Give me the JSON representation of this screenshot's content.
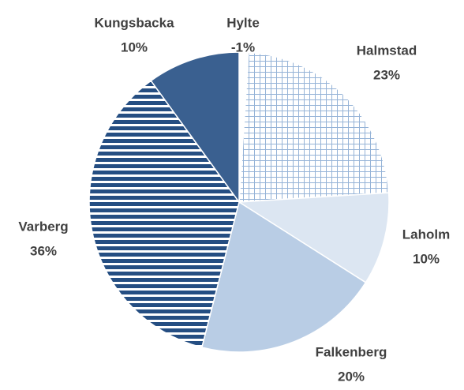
{
  "chart_data": {
    "type": "pie",
    "categories": [
      "Hylte",
      "Halmstad",
      "Laholm",
      "Falkenberg",
      "Varberg",
      "Kungsbacka"
    ],
    "values": [
      -1,
      23,
      10,
      20,
      36,
      10
    ],
    "value_labels": [
      "-1%",
      "23%",
      "10%",
      "20%",
      "36%",
      "10%"
    ],
    "colors": [
      "#ffffff",
      "#95b3d7",
      "#dce6f2",
      "#b9cde5",
      "#254e82",
      "#3a6090"
    ],
    "patterns": [
      "solid",
      "grid",
      "solid",
      "solid",
      "horizontal",
      "solid"
    ]
  }
}
